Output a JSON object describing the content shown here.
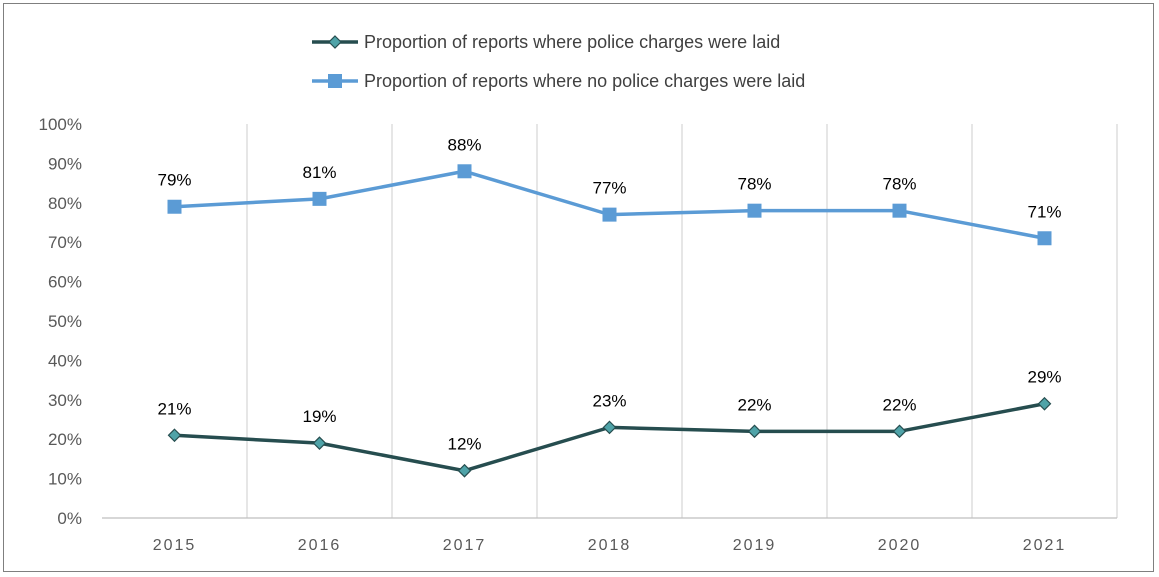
{
  "chart_data": {
    "type": "line",
    "categories": [
      "2015",
      "2016",
      "2017",
      "2018",
      "2019",
      "2020",
      "2021"
    ],
    "series": [
      {
        "name": "Proportion of reports where police charges were laid",
        "values": [
          21,
          19,
          12,
          23,
          22,
          22,
          29
        ],
        "labels": [
          "21%",
          "19%",
          "12%",
          "23%",
          "22%",
          "22%",
          "29%"
        ],
        "color": "#264d4f",
        "marker_fill": "#4fa3a8",
        "marker": "diamond"
      },
      {
        "name": "Proportion of reports where no police charges were laid",
        "values": [
          79,
          81,
          88,
          77,
          78,
          78,
          71
        ],
        "labels": [
          "79%",
          "81%",
          "88%",
          "77%",
          "78%",
          "78%",
          "71%"
        ],
        "color": "#5b9bd5",
        "marker_fill": "#5b9bd5",
        "marker": "square"
      }
    ],
    "yticks": [
      "0%",
      "10%",
      "20%",
      "30%",
      "40%",
      "50%",
      "60%",
      "70%",
      "80%",
      "90%",
      "100%"
    ],
    "ylim": [
      0,
      100
    ],
    "grid": "vertical",
    "legend": "top",
    "xlabel": "",
    "ylabel": "",
    "title": ""
  }
}
